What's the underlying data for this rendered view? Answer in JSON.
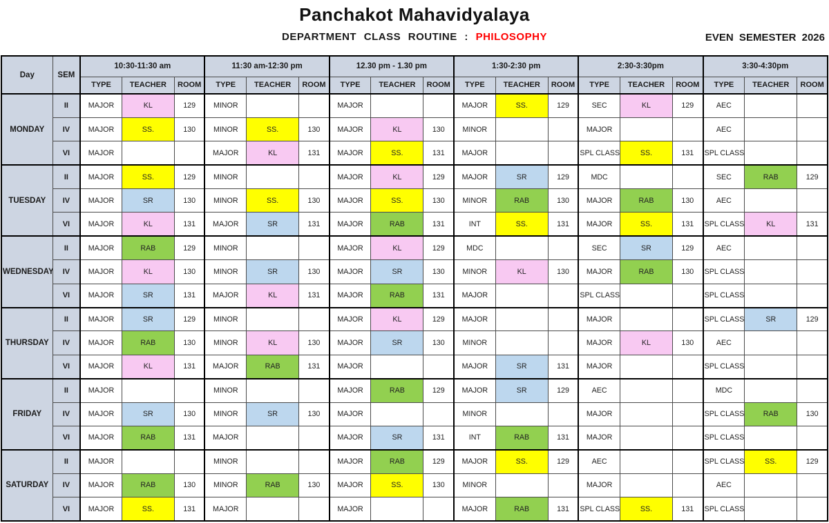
{
  "header": {
    "title": "Panchakot Mahavidyalaya",
    "subtitle_prefix": "DEPARTMENT  CLASS  ROUTINE : ",
    "subtitle_highlight": "PHILOSOPHY",
    "semester": "EVEN SEMESTER  2026"
  },
  "table": {
    "day_header": "Day",
    "sem_header": "SEM",
    "sub_headers": [
      "TYPE",
      "TEACHER",
      "ROOM"
    ],
    "time_slots": [
      "10:30-11:30 am",
      "11:30 am-12:30 pm",
      "12.30 pm - 1.30 pm",
      "1:30-2:30 pm",
      "2:30-3:30pm",
      "3:30-4:30pm"
    ],
    "teacher_colors": {
      "SS.": "#FFFF00",
      "KL": "#F8C9F2",
      "SR": "#BDD7EE",
      "RAB": "#92D050"
    },
    "header_bg": "#CDD5E2",
    "days": [
      {
        "day": "MONDAY",
        "rows": [
          {
            "sem": "II",
            "slots": [
              {
                "type": "MAJOR",
                "teacher": "KL",
                "room": "129"
              },
              {
                "type": "MINOR",
                "teacher": "",
                "room": ""
              },
              {
                "type": "MAJOR",
                "teacher": "",
                "room": ""
              },
              {
                "type": "MAJOR",
                "teacher": "SS.",
                "room": "129"
              },
              {
                "type": "SEC",
                "teacher": "KL",
                "room": "129"
              },
              {
                "type": "AEC",
                "teacher": "",
                "room": ""
              }
            ]
          },
          {
            "sem": "IV",
            "slots": [
              {
                "type": "MAJOR",
                "teacher": "SS.",
                "room": "130"
              },
              {
                "type": "MINOR",
                "teacher": "SS.",
                "room": "130"
              },
              {
                "type": "MAJOR",
                "teacher": "KL",
                "room": "130"
              },
              {
                "type": "MINOR",
                "teacher": "",
                "room": ""
              },
              {
                "type": "MAJOR",
                "teacher": "",
                "room": ""
              },
              {
                "type": "AEC",
                "teacher": "",
                "room": ""
              }
            ]
          },
          {
            "sem": "VI",
            "slots": [
              {
                "type": "MAJOR",
                "teacher": "",
                "room": ""
              },
              {
                "type": "MAJOR",
                "teacher": "KL",
                "room": "131"
              },
              {
                "type": "MAJOR",
                "teacher": "SS.",
                "room": "131"
              },
              {
                "type": "MAJOR",
                "teacher": "",
                "room": ""
              },
              {
                "type": "SPL CLASS",
                "teacher": "SS.",
                "room": "131"
              },
              {
                "type": "SPL CLASS",
                "teacher": "",
                "room": ""
              }
            ]
          }
        ]
      },
      {
        "day": "TUESDAY",
        "rows": [
          {
            "sem": "II",
            "slots": [
              {
                "type": "MAJOR",
                "teacher": "SS.",
                "room": "129"
              },
              {
                "type": "MINOR",
                "teacher": "",
                "room": ""
              },
              {
                "type": "MAJOR",
                "teacher": "KL",
                "room": "129"
              },
              {
                "type": "MAJOR",
                "teacher": "SR",
                "room": "129"
              },
              {
                "type": "MDC",
                "teacher": "",
                "room": ""
              },
              {
                "type": "SEC",
                "teacher": "RAB",
                "room": "129"
              }
            ]
          },
          {
            "sem": "IV",
            "slots": [
              {
                "type": "MAJOR",
                "teacher": "SR",
                "room": "130"
              },
              {
                "type": "MINOR",
                "teacher": "SS.",
                "room": "130"
              },
              {
                "type": "MAJOR",
                "teacher": "SS.",
                "room": "130"
              },
              {
                "type": "MINOR",
                "teacher": "RAB",
                "room": "130"
              },
              {
                "type": "MAJOR",
                "teacher": "RAB",
                "room": "130"
              },
              {
                "type": "AEC",
                "teacher": "",
                "room": ""
              }
            ]
          },
          {
            "sem": "VI",
            "slots": [
              {
                "type": "MAJOR",
                "teacher": "KL",
                "room": "131"
              },
              {
                "type": "MAJOR",
                "teacher": "SR",
                "room": "131"
              },
              {
                "type": "MAJOR",
                "teacher": "RAB",
                "room": "131"
              },
              {
                "type": "INT",
                "teacher": "SS.",
                "room": "131"
              },
              {
                "type": "MAJOR",
                "teacher": "SS.",
                "room": "131"
              },
              {
                "type": "SPL CLASS",
                "teacher": "KL",
                "room": "131"
              }
            ]
          }
        ]
      },
      {
        "day": "WEDNESDAY",
        "rows": [
          {
            "sem": "II",
            "slots": [
              {
                "type": "MAJOR",
                "teacher": "RAB",
                "room": "129"
              },
              {
                "type": "MINOR",
                "teacher": "",
                "room": ""
              },
              {
                "type": "MAJOR",
                "teacher": "KL",
                "room": "129"
              },
              {
                "type": "MDC",
                "teacher": "",
                "room": ""
              },
              {
                "type": "SEC",
                "teacher": "SR",
                "room": "129"
              },
              {
                "type": "AEC",
                "teacher": "",
                "room": ""
              }
            ]
          },
          {
            "sem": "IV",
            "slots": [
              {
                "type": "MAJOR",
                "teacher": "KL",
                "room": "130"
              },
              {
                "type": "MINOR",
                "teacher": "SR",
                "room": "130"
              },
              {
                "type": "MAJOR",
                "teacher": "SR",
                "room": "130"
              },
              {
                "type": "MINOR",
                "teacher": "KL",
                "room": "130"
              },
              {
                "type": "MAJOR",
                "teacher": "RAB",
                "room": "130"
              },
              {
                "type": "SPL CLASS",
                "teacher": "",
                "room": ""
              }
            ]
          },
          {
            "sem": "VI",
            "slots": [
              {
                "type": "MAJOR",
                "teacher": "SR",
                "room": "131"
              },
              {
                "type": "MAJOR",
                "teacher": "KL",
                "room": "131"
              },
              {
                "type": "MAJOR",
                "teacher": "RAB",
                "room": "131"
              },
              {
                "type": "MAJOR",
                "teacher": "",
                "room": ""
              },
              {
                "type": "SPL CLASS",
                "teacher": "",
                "room": ""
              },
              {
                "type": "SPL CLASS",
                "teacher": "",
                "room": ""
              }
            ]
          }
        ]
      },
      {
        "day": "THURSDAY",
        "rows": [
          {
            "sem": "II",
            "slots": [
              {
                "type": "MAJOR",
                "teacher": "SR",
                "room": "129"
              },
              {
                "type": "MINOR",
                "teacher": "",
                "room": ""
              },
              {
                "type": "MAJOR",
                "teacher": "KL",
                "room": "129"
              },
              {
                "type": "MAJOR",
                "teacher": "",
                "room": ""
              },
              {
                "type": "MAJOR",
                "teacher": "",
                "room": ""
              },
              {
                "type": "SPL CLASS",
                "teacher": "SR",
                "room": "129"
              }
            ]
          },
          {
            "sem": "IV",
            "slots": [
              {
                "type": "MAJOR",
                "teacher": "RAB",
                "room": "130"
              },
              {
                "type": "MINOR",
                "teacher": "KL",
                "room": "130"
              },
              {
                "type": "MAJOR",
                "teacher": "SR",
                "room": "130"
              },
              {
                "type": "MINOR",
                "teacher": "",
                "room": ""
              },
              {
                "type": "MAJOR",
                "teacher": "KL",
                "room": "130"
              },
              {
                "type": "AEC",
                "teacher": "",
                "room": ""
              }
            ]
          },
          {
            "sem": "VI",
            "slots": [
              {
                "type": "MAJOR",
                "teacher": "KL",
                "room": "131"
              },
              {
                "type": "MAJOR",
                "teacher": "RAB",
                "room": "131"
              },
              {
                "type": "MAJOR",
                "teacher": "",
                "room": ""
              },
              {
                "type": "MAJOR",
                "teacher": "SR",
                "room": "131"
              },
              {
                "type": "MAJOR",
                "teacher": "",
                "room": ""
              },
              {
                "type": "SPL CLASS",
                "teacher": "",
                "room": ""
              }
            ]
          }
        ]
      },
      {
        "day": "FRIDAY",
        "rows": [
          {
            "sem": "II",
            "slots": [
              {
                "type": "MAJOR",
                "teacher": "",
                "room": ""
              },
              {
                "type": "MINOR",
                "teacher": "",
                "room": ""
              },
              {
                "type": "MAJOR",
                "teacher": "RAB",
                "room": "129"
              },
              {
                "type": "MAJOR",
                "teacher": "SR",
                "room": "129"
              },
              {
                "type": "AEC",
                "teacher": "",
                "room": ""
              },
              {
                "type": "MDC",
                "teacher": "",
                "room": ""
              }
            ]
          },
          {
            "sem": "IV",
            "slots": [
              {
                "type": "MAJOR",
                "teacher": "SR",
                "room": "130"
              },
              {
                "type": "MINOR",
                "teacher": "SR",
                "room": "130"
              },
              {
                "type": "MAJOR",
                "teacher": "",
                "room": ""
              },
              {
                "type": "MINOR",
                "teacher": "",
                "room": ""
              },
              {
                "type": "MAJOR",
                "teacher": "",
                "room": ""
              },
              {
                "type": "SPL CLASS",
                "teacher": "RAB",
                "room": "130"
              }
            ]
          },
          {
            "sem": "VI",
            "slots": [
              {
                "type": "MAJOR",
                "teacher": "RAB",
                "room": "131"
              },
              {
                "type": "MAJOR",
                "teacher": "",
                "room": ""
              },
              {
                "type": "MAJOR",
                "teacher": "SR",
                "room": "131"
              },
              {
                "type": "INT",
                "teacher": "RAB",
                "room": "131"
              },
              {
                "type": "MAJOR",
                "teacher": "",
                "room": ""
              },
              {
                "type": "SPL CLASS",
                "teacher": "",
                "room": ""
              }
            ]
          }
        ]
      },
      {
        "day": "SATURDAY",
        "rows": [
          {
            "sem": "II",
            "slots": [
              {
                "type": "MAJOR",
                "teacher": "",
                "room": ""
              },
              {
                "type": "MINOR",
                "teacher": "",
                "room": ""
              },
              {
                "type": "MAJOR",
                "teacher": "RAB",
                "room": "129"
              },
              {
                "type": "MAJOR",
                "teacher": "SS.",
                "room": "129"
              },
              {
                "type": "AEC",
                "teacher": "",
                "room": ""
              },
              {
                "type": "SPL CLASS",
                "teacher": "SS.",
                "room": "129"
              }
            ]
          },
          {
            "sem": "IV",
            "slots": [
              {
                "type": "MAJOR",
                "teacher": "RAB",
                "room": "130"
              },
              {
                "type": "MINOR",
                "teacher": "RAB",
                "room": "130"
              },
              {
                "type": "MAJOR",
                "teacher": "SS.",
                "room": "130"
              },
              {
                "type": "MINOR",
                "teacher": "",
                "room": ""
              },
              {
                "type": "MAJOR",
                "teacher": "",
                "room": ""
              },
              {
                "type": "AEC",
                "teacher": "",
                "room": ""
              }
            ]
          },
          {
            "sem": "VI",
            "slots": [
              {
                "type": "MAJOR",
                "teacher": "SS.",
                "room": "131"
              },
              {
                "type": "MAJOR",
                "teacher": "",
                "room": ""
              },
              {
                "type": "MAJOR",
                "teacher": "",
                "room": ""
              },
              {
                "type": "MAJOR",
                "teacher": "RAB",
                "room": "131"
              },
              {
                "type": "SPL CLASS",
                "teacher": "SS.",
                "room": "131"
              },
              {
                "type": "SPL CLASS",
                "teacher": "",
                "room": ""
              }
            ]
          }
        ]
      }
    ]
  }
}
